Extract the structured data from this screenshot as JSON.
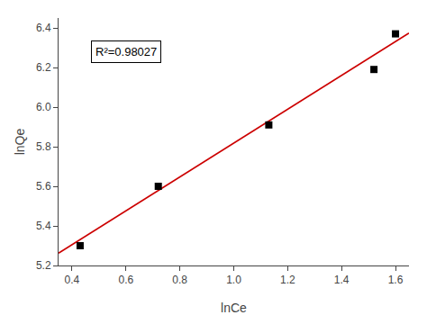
{
  "chart_data": {
    "type": "scatter",
    "xlabel": "lnCe",
    "ylabel": "lnQe",
    "series": [
      {
        "type": "line",
        "color": "#cc0000",
        "line_style": "solid",
        "x": [
          0.35,
          1.65
        ],
        "values": [
          5.26225,
          6.37375
        ]
      },
      {
        "type": "scatter",
        "color": "black",
        "marker": "square",
        "x": [
          0.43,
          0.72,
          1.13,
          1.52,
          1.6
        ],
        "values": [
          5.3,
          5.6,
          5.91,
          6.19,
          6.37
        ]
      }
    ],
    "annotations": [
      {
        "text": "R²=0.98027",
        "x": 0.47,
        "y": 6.28
      }
    ],
    "xlim": [
      0.35,
      1.65
    ],
    "ylim": [
      5.2,
      6.45
    ],
    "xticks": [
      0.4,
      0.6,
      0.8,
      {
        "value": 1.0,
        "label": "1.0"
      },
      1.2,
      1.4,
      1.6
    ],
    "yticks": [
      5.2,
      5.4,
      5.6,
      5.8,
      {
        "value": 6.0,
        "label": "6.0"
      },
      6.2,
      6.4
    ],
    "grid": false
  }
}
